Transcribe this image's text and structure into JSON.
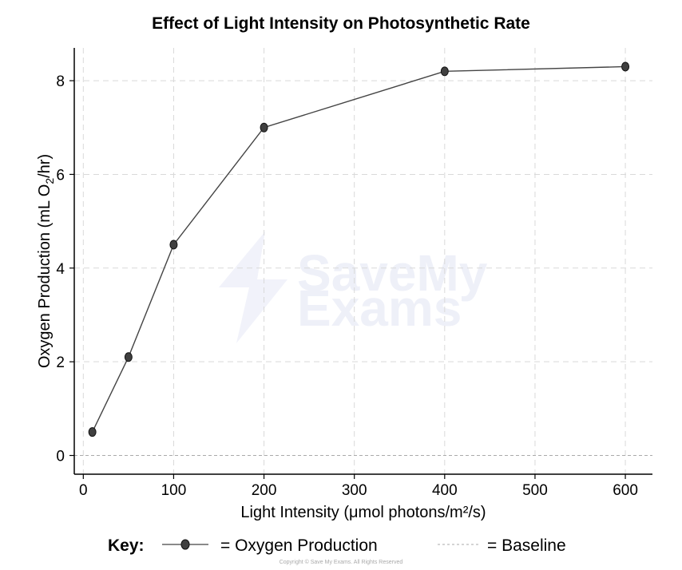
{
  "chart_data": {
    "type": "line",
    "title": "Effect of Light Intensity on Photosynthetic Rate",
    "xlabel": "Light Intensity (μmol photons/m²/s)",
    "ylabel": {
      "main": "Oxygen Production (mL O",
      "sub": "2",
      "tail": "/hr)"
    },
    "xlim": [
      -10,
      630
    ],
    "ylim": [
      -0.4,
      8.7
    ],
    "xticks": [
      0,
      100,
      200,
      300,
      400,
      500,
      600
    ],
    "yticks": [
      0,
      2,
      4,
      6,
      8
    ],
    "grid": true,
    "series": [
      {
        "name": "Oxygen Production",
        "x": [
          10,
          50,
          100,
          200,
          400,
          600
        ],
        "y": [
          0.5,
          2.1,
          4.5,
          7.0,
          8.2,
          8.3
        ]
      }
    ],
    "baseline": {
      "name": "Baseline",
      "y": 0
    },
    "legend": {
      "heading": "Key:",
      "entries": [
        "= Oxygen Production",
        "= Baseline"
      ],
      "placement": "bottom"
    }
  },
  "watermark": {
    "line1": "SaveMy",
    "line2": "Exams"
  },
  "copyright": "Copyright © Save My Exams. All Rights Reserved",
  "colors": {
    "line": "#444444",
    "marker": "#404040",
    "grid": "#d9d9d9",
    "baseline": "#aaaaaa"
  }
}
